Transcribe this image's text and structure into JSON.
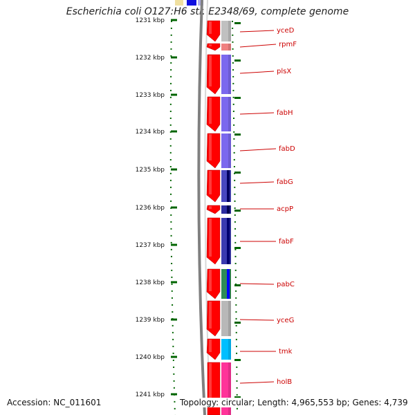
{
  "title": "Escherichia coli O127:H6 str. E2348/69, complete genome",
  "accession_text": "Accession: NC_011601",
  "summary_text": "Topology: circular; Length: 4,965,553 bp; Genes: 4,739",
  "scale_labels": [
    "1231 kbp",
    "1232 kbp",
    "1233 kbp",
    "1234 kbp",
    "1235 kbp",
    "1236 kbp",
    "1237 kbp",
    "1238 kbp",
    "1239 kbp",
    "1240 kbp",
    "1241 kbp"
  ],
  "gene_labels": [
    "yceD",
    "rpmF",
    "plsX",
    "fabH",
    "fabD",
    "fabG",
    "acpP",
    "fabF",
    "pabC",
    "yceG",
    "tmk",
    "holB"
  ],
  "colors": {
    "cds": "#ff0000",
    "label": "#cc0000",
    "scale_tick": "#006400",
    "backbone": "#808080",
    "gene_function": [
      "#c0c0c0",
      "#f08080",
      "#7b68ee",
      "#7b68ee",
      "#7b68ee",
      "#4848c0",
      "#2c2ca0",
      "#3a3ab0",
      "#2e8b57",
      "#b8b8b8",
      "#00bfff",
      "#ff3399"
    ]
  }
}
